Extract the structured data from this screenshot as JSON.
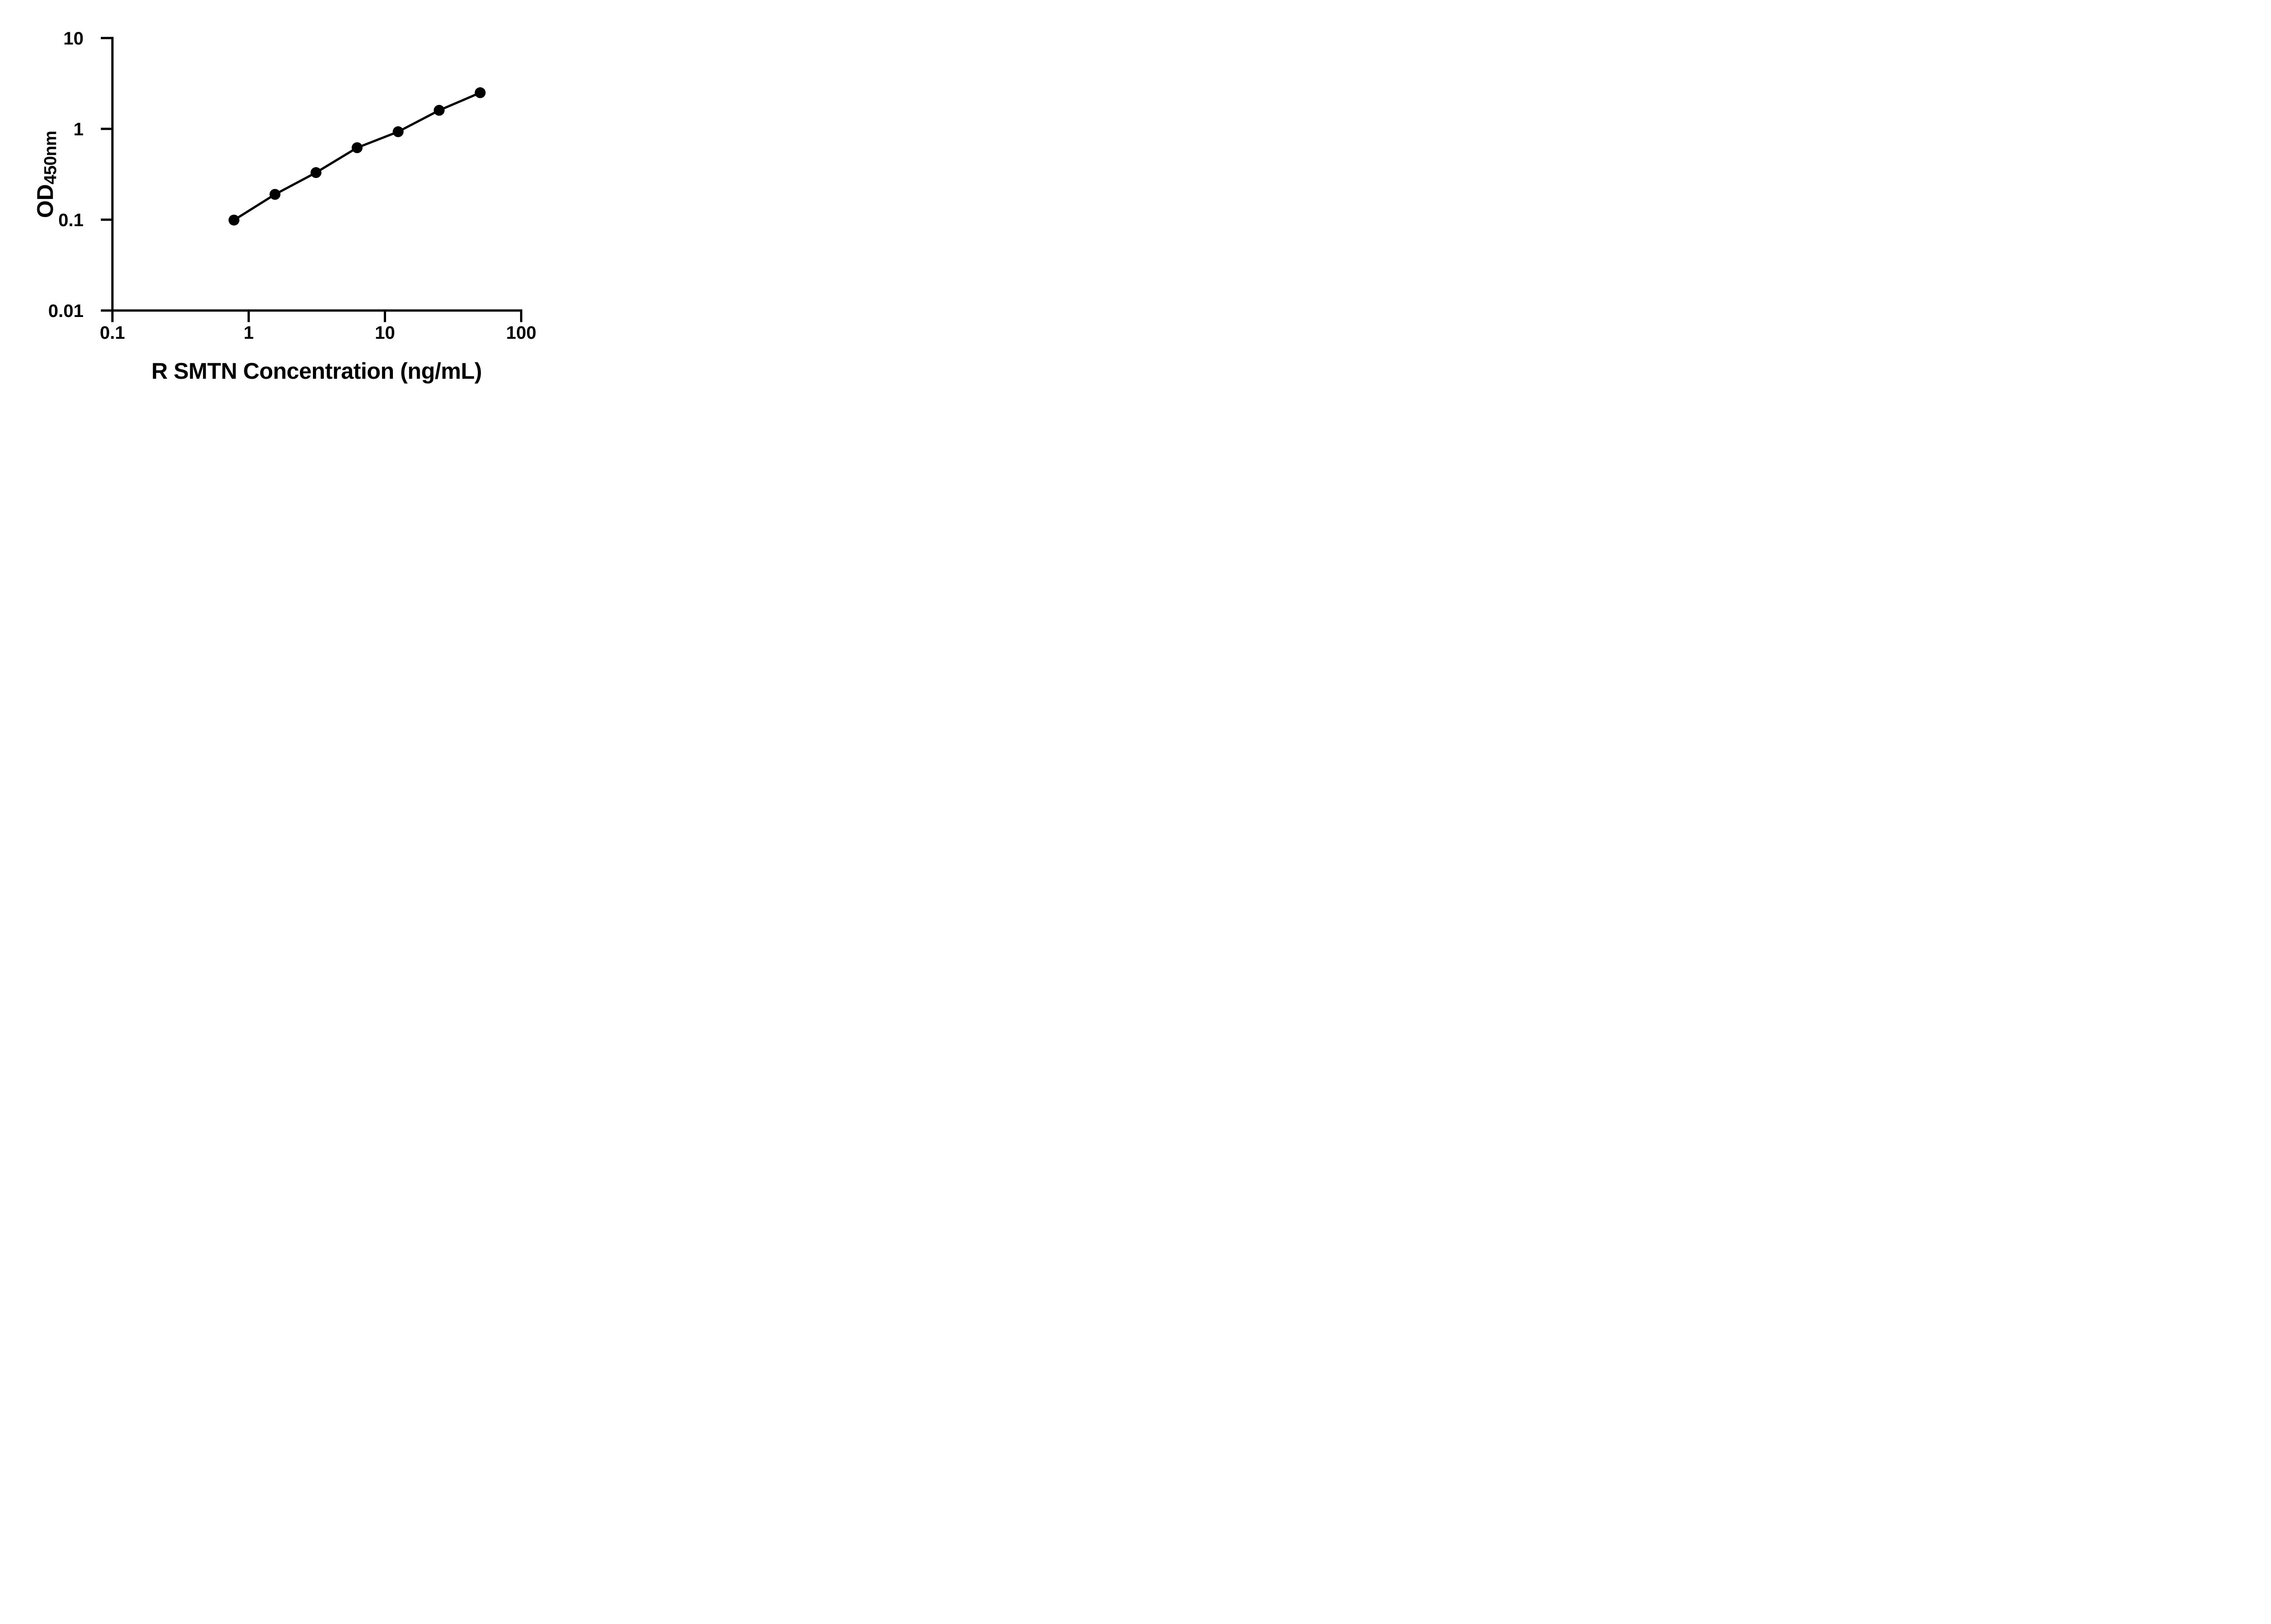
{
  "page": {
    "background_color": "#ffffff"
  },
  "chart_data": {
    "type": "line",
    "title": "",
    "xlabel": "R SMTN Concentration (ng/mL)",
    "ylabel": "OD450nm",
    "ylabel_main": "OD",
    "ylabel_sub": "450nm",
    "x_scale": "log",
    "y_scale": "log",
    "xlim": [
      0.1,
      100
    ],
    "ylim": [
      0.01,
      10
    ],
    "x_ticks": [
      {
        "value": 0.1,
        "label": "0.1"
      },
      {
        "value": 1,
        "label": "1"
      },
      {
        "value": 10,
        "label": "10"
      },
      {
        "value": 100,
        "label": "100"
      }
    ],
    "y_ticks": [
      {
        "value": 10,
        "label": "10"
      },
      {
        "value": 1,
        "label": "1"
      },
      {
        "value": 0.1,
        "label": "0.1"
      },
      {
        "value": 0.01,
        "label": "0.01"
      }
    ],
    "x": [
      0.78,
      1.56,
      3.12,
      6.25,
      12.5,
      25,
      50
    ],
    "y": [
      0.099,
      0.19,
      0.33,
      0.62,
      0.93,
      1.6,
      2.5
    ],
    "marker": "filled-circle",
    "marker_color": "#000000",
    "line_color": "#000000",
    "axis_color": "#000000",
    "grid": false,
    "legend": "none"
  }
}
